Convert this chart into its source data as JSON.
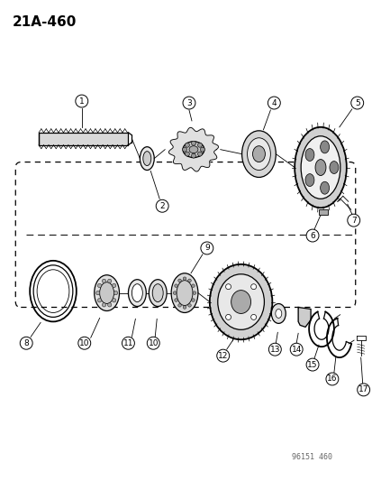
{
  "title": "21A-460",
  "watermark": "96151 460",
  "bg_color": "#ffffff",
  "line_color": "#000000",
  "fig_width": 4.14,
  "fig_height": 5.33,
  "dpi": 100,
  "title_fontsize": 11,
  "watermark_fontsize": 6,
  "label_fontsize": 6.5
}
